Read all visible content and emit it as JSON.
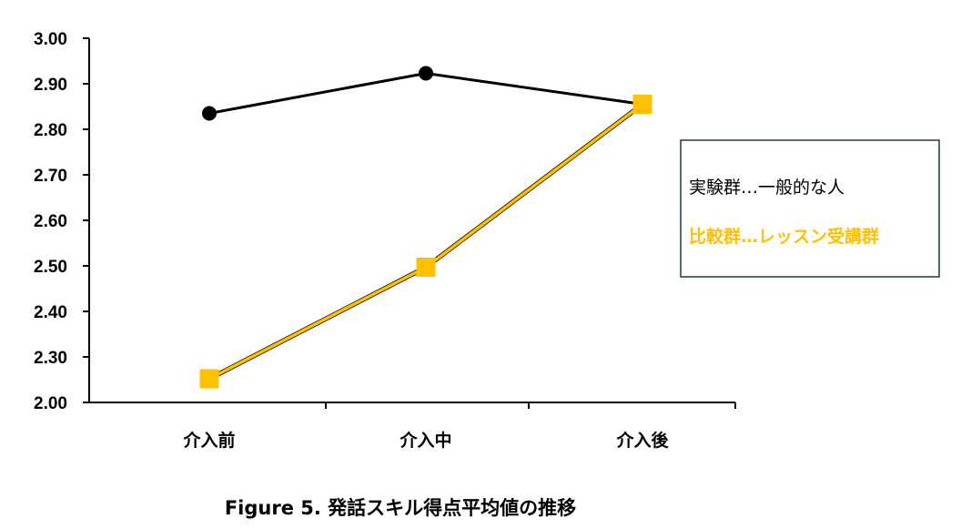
{
  "chart_data": {
    "type": "line",
    "categories": [
      "介入前",
      "介入中",
      "介入後"
    ],
    "y_ticks": [
      "2.00",
      "2.30",
      "2.40",
      "2.50",
      "2.60",
      "2.70",
      "2.80",
      "2.90",
      "3.00"
    ],
    "y_tick_values": [
      2.2,
      2.3,
      2.4,
      2.5,
      2.6,
      2.7,
      2.8,
      2.9,
      3.0
    ],
    "ylim": [
      2.2,
      3.0
    ],
    "axis_break": true,
    "grid": false,
    "legend_position": "right",
    "series": [
      {
        "name": "実験群…一般的な人",
        "values": [
          2.835,
          2.923,
          2.855
        ],
        "color": "#000000",
        "marker": "circle"
      },
      {
        "name": "比較群…レッスン受講群",
        "values": [
          2.252,
          2.497,
          2.855
        ],
        "color": "#FFC000",
        "marker": "square"
      }
    ],
    "caption": "Figure 5. 発話スキル得点平均値の推移"
  },
  "colors": {
    "axis": "#000000",
    "legend_border": "#1f3a2e"
  }
}
